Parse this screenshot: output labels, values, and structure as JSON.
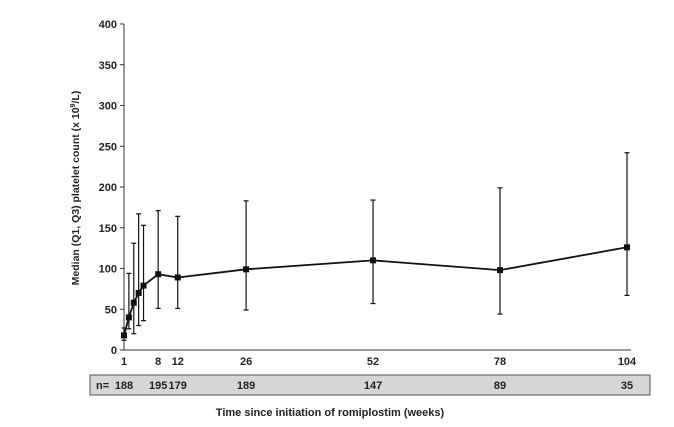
{
  "chart_data": {
    "type": "line",
    "title": "",
    "xlabel": "Time since initiation of romiplostim (weeks)",
    "ylabel_prefix": "Median (Q1, Q3) platelet count (x 10",
    "ylabel_sup": "9",
    "ylabel_suffix": "/L)",
    "ylim": [
      0,
      400
    ],
    "yticks": [
      "0",
      "50",
      "100",
      "150",
      "200",
      "250",
      "300",
      "350",
      "400"
    ],
    "xlim": [
      1,
      104
    ],
    "xtick_labels": [
      {
        "x": 1,
        "label": "1"
      },
      {
        "x": 8,
        "label": "8"
      },
      {
        "x": 12,
        "label": "12"
      },
      {
        "x": 26,
        "label": "26"
      },
      {
        "x": 52,
        "label": "52"
      },
      {
        "x": 78,
        "label": "78"
      },
      {
        "x": 104,
        "label": "104"
      }
    ],
    "series": [
      {
        "points": [
          {
            "x": 1,
            "median": 18,
            "q1": 12,
            "q3": 27
          },
          {
            "x": 2,
            "median": 40,
            "q1": 26,
            "q3": 94
          },
          {
            "x": 3,
            "median": 58,
            "q1": 20,
            "q3": 131
          },
          {
            "x": 4,
            "median": 70,
            "q1": 30,
            "q3": 167
          },
          {
            "x": 5,
            "median": 79,
            "q1": 36,
            "q3": 153
          },
          {
            "x": 8,
            "median": 93,
            "q1": 51,
            "q3": 171
          },
          {
            "x": 12,
            "median": 89,
            "q1": 51,
            "q3": 164
          },
          {
            "x": 26,
            "median": 99,
            "q1": 49,
            "q3": 183
          },
          {
            "x": 52,
            "median": 110,
            "q1": 57,
            "q3": 184
          },
          {
            "x": 78,
            "median": 98,
            "q1": 44,
            "q3": 199
          },
          {
            "x": 104,
            "median": 126,
            "q1": 67,
            "q3": 242
          }
        ]
      }
    ],
    "n_row": {
      "label": "n=",
      "entries": [
        {
          "x": 1,
          "value": "188"
        },
        {
          "x": 8,
          "value": "195"
        },
        {
          "x": 12,
          "value": "179"
        },
        {
          "x": 26,
          "value": "189"
        },
        {
          "x": 52,
          "value": "147"
        },
        {
          "x": 78,
          "value": "89"
        },
        {
          "x": 104,
          "value": "35"
        }
      ]
    },
    "colors": {
      "line": "#111111",
      "marker": "#111111",
      "n_box_fill": "#d6d6d6",
      "n_box_border": "#555555"
    },
    "grid": false,
    "legend": "none"
  }
}
